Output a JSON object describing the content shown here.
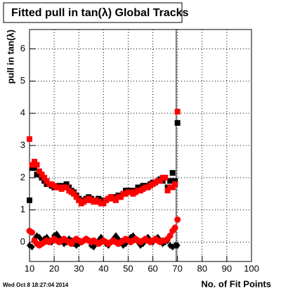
{
  "chart_data": {
    "type": "scatter",
    "title": "Fitted pull in tan(λ)  Global Tracks",
    "y_label": "pull in tan(λ)",
    "x_label": "No. of Fit Points",
    "timestamp": "Wed Oct  8 18:27:04 2014",
    "x": [
      10,
      11,
      12,
      13,
      14,
      15,
      16,
      17,
      18,
      19,
      20,
      21,
      22,
      23,
      24,
      25,
      26,
      27,
      28,
      29,
      30,
      31,
      32,
      33,
      34,
      35,
      36,
      37,
      38,
      39,
      40,
      41,
      42,
      43,
      44,
      45,
      46,
      47,
      48,
      49,
      50,
      51,
      52,
      53,
      54,
      55,
      56,
      57,
      58,
      59,
      60,
      61,
      62,
      63,
      64,
      65,
      66,
      67,
      68,
      69,
      70
    ],
    "series": [
      {
        "color": "#000000",
        "marker": "square",
        "values": [
          1.3,
          2.3,
          2.3,
          2.1,
          2.1,
          2.0,
          1.9,
          1.8,
          1.8,
          1.75,
          1.7,
          1.7,
          1.75,
          1.7,
          1.75,
          1.8,
          1.7,
          1.6,
          1.55,
          1.45,
          1.35,
          1.3,
          1.3,
          1.35,
          1.4,
          1.35,
          1.3,
          1.3,
          1.35,
          1.3,
          1.25,
          1.3,
          1.35,
          1.4,
          1.4,
          1.35,
          1.45,
          1.45,
          1.5,
          1.6,
          1.6,
          1.6,
          1.55,
          1.6,
          1.7,
          1.7,
          1.75,
          1.75,
          1.7,
          1.8,
          1.85,
          1.85,
          1.9,
          1.95,
          1.9,
          2.0,
          1.7,
          1.9,
          2.15,
          1.9,
          3.7
        ]
      },
      {
        "color": "#ff0000",
        "marker": "square",
        "values": [
          3.2,
          2.4,
          2.5,
          2.4,
          2.2,
          2.1,
          2.0,
          1.9,
          1.8,
          1.8,
          1.75,
          1.7,
          1.7,
          1.65,
          1.7,
          1.7,
          1.6,
          1.55,
          1.5,
          1.4,
          1.3,
          1.2,
          1.25,
          1.3,
          1.35,
          1.3,
          1.25,
          1.3,
          1.25,
          1.2,
          1.2,
          1.3,
          1.35,
          1.4,
          1.35,
          1.3,
          1.4,
          1.4,
          1.5,
          1.5,
          1.55,
          1.55,
          1.5,
          1.55,
          1.6,
          1.6,
          1.65,
          1.7,
          1.7,
          1.75,
          1.8,
          1.85,
          1.9,
          1.9,
          2.0,
          2.0,
          1.6,
          1.7,
          1.7,
          1.8,
          4.05
        ]
      },
      {
        "color": "#000000",
        "marker": "diamond",
        "values": [
          -0.1,
          -0.15,
          0.1,
          0.2,
          0.15,
          0.05,
          0.1,
          0.15,
          0.05,
          0.0,
          0.2,
          0.25,
          0.15,
          0.05,
          -0.05,
          0.0,
          0.1,
          0.05,
          -0.05,
          -0.1,
          -0.05,
          0.0,
          0.05,
          0.1,
          0.05,
          -0.1,
          -0.15,
          -0.05,
          0.05,
          0.15,
          0.05,
          -0.05,
          -0.1,
          0.0,
          0.1,
          0.2,
          0.1,
          0.0,
          -0.1,
          -0.05,
          0.05,
          0.15,
          0.2,
          0.1,
          0.0,
          -0.1,
          -0.05,
          0.05,
          0.15,
          0.05,
          0.0,
          0.1,
          0.15,
          0.05,
          -0.05,
          0.0,
          0.05,
          -0.1,
          -0.15,
          -0.1,
          -0.1
        ]
      },
      {
        "color": "#ff0000",
        "marker": "circle",
        "values": [
          0.35,
          0.3,
          0.05,
          -0.05,
          -0.1,
          -0.05,
          0.0,
          0.05,
          0.0,
          0.05,
          0.1,
          0.05,
          0.0,
          0.05,
          0.1,
          0.05,
          0.0,
          -0.05,
          0.05,
          0.1,
          0.05,
          0.0,
          0.05,
          0.1,
          0.05,
          0.0,
          0.05,
          0.0,
          -0.05,
          0.0,
          0.05,
          0.0,
          -0.05,
          0.0,
          0.05,
          0.0,
          -0.05,
          0.0,
          0.05,
          0.1,
          0.05,
          0.0,
          0.05,
          0.1,
          0.05,
          0.0,
          0.05,
          0.1,
          0.05,
          0.0,
          0.05,
          0.1,
          0.05,
          0.0,
          0.05,
          0.05,
          0.1,
          0.2,
          0.35,
          0.45,
          0.7
        ]
      }
    ],
    "vertical_line_x": 69.5,
    "xlim": [
      10,
      100
    ],
    "xticks": [
      10,
      20,
      30,
      40,
      50,
      60,
      70,
      80,
      90,
      100
    ],
    "ylim": [
      -0.6,
      6.6
    ],
    "yticks": [
      0,
      1,
      2,
      3,
      4,
      5,
      6
    ],
    "grid": true
  }
}
